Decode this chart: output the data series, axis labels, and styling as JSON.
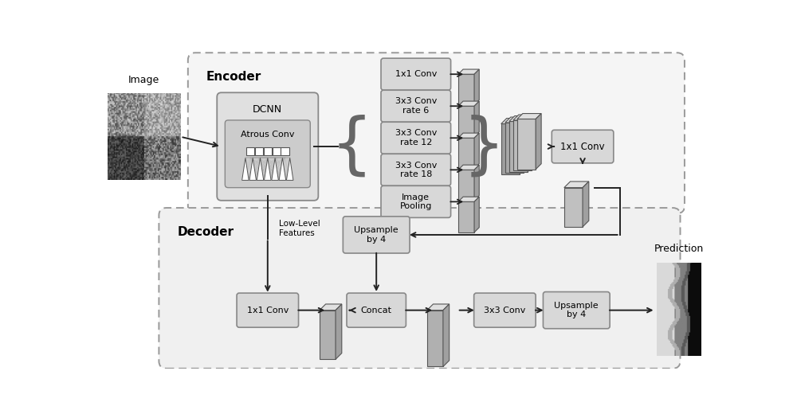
{
  "fig_width": 10.0,
  "fig_height": 5.2,
  "bg_color": "#ffffff",
  "encoder_label": "Encoder",
  "decoder_label": "Decoder",
  "aspp_boxes": [
    "1x1 Conv",
    "3x3 Conv\nrate 6",
    "3x3 Conv\nrate 12",
    "3x3 Conv\nrate 18",
    "Image\nPooling"
  ],
  "upsample_box": "Upsample\nby 4",
  "conv1x1_box": "1x1 Conv",
  "conv3x3_box": "3x3 Conv",
  "concat_box": "Concat",
  "image_label": "Image",
  "dcnn_label": "DCNN",
  "atrous_label": "Atrous Conv",
  "prediction_label": "Prediction",
  "low_level_label": "Low-Level\nFeatures",
  "box_fc": "#d8d8d8",
  "box_ec": "#888888",
  "enc_fc": "#f5f5f5",
  "dec_fc": "#f0f0f0",
  "border_ec": "#999999",
  "dcnn_fc": "#e0e0e0",
  "atrous_fc": "#cccccc",
  "arrow_c": "#222222"
}
